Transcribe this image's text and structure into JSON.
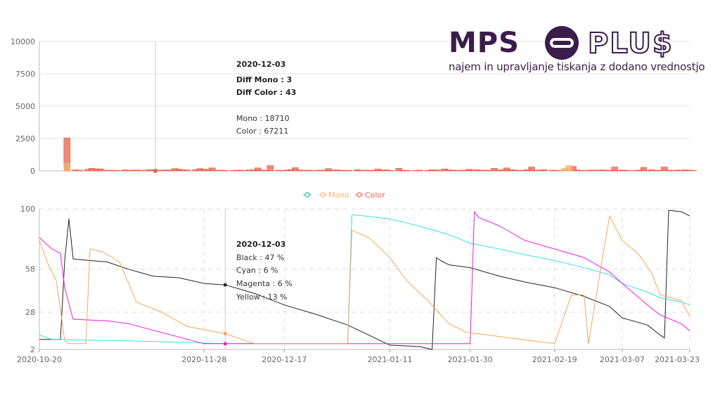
{
  "logo": {
    "brand_left": "MPS",
    "brand_right": "PLU$",
    "tagline": "najem in upravljanje tiskanja z dodano vrednostjo",
    "colors": {
      "primary": "#3a1d4a"
    }
  },
  "legend": {
    "items": [
      {
        "label": "",
        "color": "#2bb5b0"
      },
      {
        "label": "Mono",
        "color": "#f5b26b"
      },
      {
        "label": "Color",
        "color": "#e8624a"
      }
    ]
  },
  "top_tooltip": {
    "date": "2020-12-03",
    "diff_mono": "Diff Mono : 3",
    "diff_color": "Diff Color : 43",
    "mono": "Mono : 18710",
    "color": "Color : 67211"
  },
  "bottom_tooltip": {
    "date": "2020-12-03",
    "black": "Black : 47 %",
    "cyan": "Cyan : 6 %",
    "magenta": "Magenta : 6 %",
    "yellow": "Yellow : 13 %"
  },
  "chart_data": [
    {
      "type": "bar",
      "ylim": [
        0,
        10000
      ],
      "yticks": [
        "10000",
        "7500",
        "5000",
        "2500",
        "0"
      ],
      "ytick_values": [
        10000,
        7500,
        5000,
        2500,
        0
      ],
      "series": [
        {
          "name": "Color",
          "color": "#e8624a",
          "x": [
            2,
            4,
            5,
            7,
            8,
            9,
            10,
            11,
            12,
            13,
            14,
            15,
            16,
            17,
            18,
            19,
            20,
            21,
            22,
            23,
            24,
            25,
            26,
            27,
            28,
            29,
            30,
            31,
            33,
            34,
            35,
            36,
            37,
            38,
            39,
            40,
            42,
            43,
            44,
            45,
            46,
            47,
            48,
            49,
            50,
            51,
            53,
            54,
            55,
            56,
            57,
            58,
            59,
            60,
            61,
            62,
            63,
            64,
            65,
            66,
            67,
            68,
            69,
            70,
            72,
            73,
            74,
            75,
            76,
            77,
            78,
            79,
            80,
            82,
            83,
            84,
            86,
            87,
            89,
            90,
            91,
            92,
            93,
            94,
            95,
            96,
            97,
            98,
            99,
            100,
            101,
            102,
            103,
            104,
            105,
            106,
            107,
            108,
            109,
            110,
            111,
            112,
            113,
            114,
            115,
            116,
            117,
            119,
            120,
            121,
            122,
            123,
            124,
            125,
            126,
            127,
            128,
            129,
            130,
            131,
            132,
            133,
            134,
            135,
            136,
            137,
            138,
            139,
            140,
            141,
            142,
            143,
            144,
            145,
            146,
            147,
            148,
            149,
            150,
            151,
            152,
            153
          ],
          "values": [
            2550,
            80,
            60,
            120,
            200,
            150,
            160,
            60,
            40,
            50,
            30,
            20,
            80,
            40,
            60,
            70,
            30,
            60,
            90,
            80,
            60,
            50,
            80,
            60,
            180,
            130,
            90,
            70,
            100,
            180,
            130,
            120,
            230,
            40,
            60,
            40,
            30,
            60,
            50,
            30,
            80,
            80,
            230,
            70,
            40,
            410,
            60,
            30,
            70,
            100,
            250,
            80,
            40,
            60,
            40,
            30,
            60,
            50,
            180,
            60,
            80,
            40,
            50,
            40,
            100,
            30,
            60,
            40,
            60,
            140,
            60,
            80,
            40,
            200,
            50,
            40,
            30,
            60,
            40,
            90,
            70,
            60,
            150,
            80,
            60,
            40,
            50,
            60,
            120,
            60,
            90,
            40,
            60,
            50,
            200,
            60,
            100,
            230,
            100,
            60,
            40,
            50,
            100,
            300,
            60,
            70,
            90,
            60,
            40,
            30,
            80,
            60,
            350,
            70,
            40,
            30,
            60,
            70,
            50,
            80,
            60,
            40,
            300,
            40,
            70,
            40,
            20,
            30,
            60,
            270,
            50,
            90,
            40,
            60,
            300,
            60,
            40,
            60,
            50,
            80,
            60,
            30
          ]
        },
        {
          "name": "Mono",
          "color": "#f5b26b",
          "x": [
            2,
            122,
            123
          ],
          "values": [
            600,
            200,
            400
          ]
        }
      ]
    },
    {
      "type": "line",
      "ylim": [
        2,
        100
      ],
      "yticks": [
        "100",
        "58",
        "28",
        "2"
      ],
      "ytick_values": [
        100,
        58,
        28,
        2
      ],
      "x_dates": [
        "2020-10-20",
        "2020-11-28",
        "2020-12-17",
        "2021-01-11",
        "2021-01-30",
        "2021-02-19",
        "2021-03-07",
        "2021-03-23"
      ],
      "xticks": [
        "2020-10-20",
        "2020-11-28",
        "2020-12-17",
        "2021-01-11",
        "2021-01-30",
        "2021-02-19",
        "2021-03-07",
        "2021-03-23"
      ],
      "series": [
        {
          "name": "Black",
          "color": "#222222",
          "x": [
            "2020-10-20",
            "2020-10-24",
            "2020-10-25",
            "2020-10-26",
            "2020-10-27",
            "2020-10-28",
            "2020-11-01",
            "2020-11-05",
            "2020-11-10",
            "2020-11-16",
            "2020-11-22",
            "2020-11-28",
            "2020-12-03",
            "2020-12-10",
            "2020-12-17",
            "2020-12-25",
            "2021-01-01",
            "2021-01-06",
            "2021-01-11",
            "2021-01-18",
            "2021-01-21",
            "2021-01-22",
            "2021-01-23",
            "2021-01-25",
            "2021-01-30",
            "2021-02-06",
            "2021-02-12",
            "2021-02-19",
            "2021-02-26",
            "2021-03-04",
            "2021-03-07",
            "2021-03-13",
            "2021-03-16",
            "2021-03-17",
            "2021-03-18",
            "2021-03-21",
            "2021-03-23"
          ],
          "y": [
            9,
            9,
            9,
            64,
            93,
            65,
            64,
            63,
            58,
            53,
            52,
            48,
            47,
            41,
            33,
            26,
            19,
            12,
            5,
            4,
            2,
            66,
            64,
            61,
            59,
            53,
            49,
            45,
            39,
            32,
            24,
            19,
            12,
            10,
            99,
            98,
            95
          ]
        },
        {
          "name": "Cyan",
          "color": "#34e0e8",
          "x": [
            "2020-10-20",
            "2020-10-23",
            "2020-11-10",
            "2020-12-03",
            "2020-12-25",
            "2021-01-01",
            "2021-01-02",
            "2021-01-11",
            "2021-01-18",
            "2021-01-25",
            "2021-01-30",
            "2021-02-06",
            "2021-02-12",
            "2021-02-19",
            "2021-02-26",
            "2021-03-04",
            "2021-03-07",
            "2021-03-13",
            "2021-03-16",
            "2021-03-21",
            "2021-03-23"
          ],
          "y": [
            12,
            9,
            8,
            6,
            6,
            6,
            96,
            93,
            88,
            82,
            76,
            72,
            68,
            64,
            59,
            54,
            48,
            42,
            38,
            35,
            33
          ]
        },
        {
          "name": "Magenta",
          "color": "#e81ee6",
          "x": [
            "2020-10-20",
            "2020-10-23",
            "2020-10-25",
            "2020-10-26",
            "2020-10-28",
            "2020-11-05",
            "2020-11-10",
            "2020-11-28",
            "2020-12-03",
            "2020-12-25",
            "2021-01-30",
            "2021-01-31",
            "2021-02-01",
            "2021-02-06",
            "2021-02-12",
            "2021-02-19",
            "2021-02-26",
            "2021-03-04",
            "2021-03-07",
            "2021-03-11",
            "2021-03-13",
            "2021-03-16",
            "2021-03-21",
            "2021-03-23"
          ],
          "y": [
            80,
            72,
            69,
            45,
            23,
            22,
            20,
            6,
            6,
            6,
            6,
            98,
            94,
            88,
            78,
            72,
            66,
            56,
            48,
            38,
            33,
            26,
            20,
            15
          ]
        },
        {
          "name": "Yellow",
          "color": "#f5a55a",
          "x": [
            "2020-10-20",
            "2020-10-22",
            "2020-10-24",
            "2020-10-25",
            "2020-10-26",
            "2020-10-27",
            "2020-10-31",
            "2020-11-01",
            "2020-11-04",
            "2020-11-08",
            "2020-11-12",
            "2020-11-18",
            "2020-11-24",
            "2020-12-03",
            "2020-12-10",
            "2020-12-25",
            "2021-01-01",
            "2021-01-02",
            "2021-01-06",
            "2021-01-11",
            "2021-01-15",
            "2021-01-20",
            "2021-01-25",
            "2021-01-29",
            "2021-02-19",
            "2021-02-23",
            "2021-02-26",
            "2021-02-27",
            "2021-03-04",
            "2021-03-07",
            "2021-03-11",
            "2021-03-14",
            "2021-03-16",
            "2021-03-21",
            "2021-03-23"
          ],
          "y": [
            78,
            62,
            50,
            30,
            8,
            6,
            6,
            72,
            70,
            63,
            35,
            28,
            18,
            13,
            6,
            6,
            6,
            85,
            80,
            66,
            50,
            36,
            20,
            14,
            6,
            40,
            40,
            6,
            95,
            78,
            68,
            55,
            40,
            36,
            25
          ]
        }
      ],
      "markers": {
        "date": "2020-12-03"
      }
    }
  ]
}
